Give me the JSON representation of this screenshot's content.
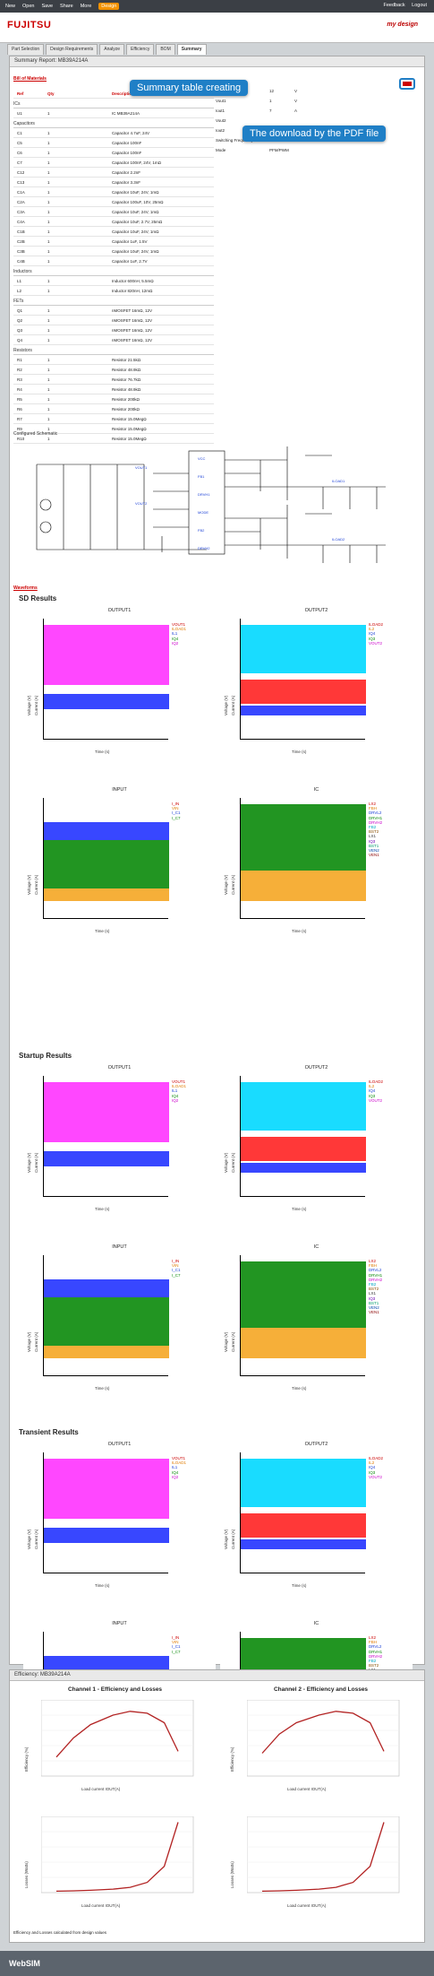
{
  "topnav": {
    "items": [
      "New",
      "Open",
      "Save",
      "Share",
      "More",
      "Design"
    ],
    "active": "Design",
    "right": [
      "Feedback",
      "Logout"
    ]
  },
  "brand": {
    "logo": "FUJITSU",
    "partner": "WebSIM"
  },
  "tabs": [
    "Part Selection",
    "Design Requirements",
    "Analyze",
    "Efficiency",
    "BOM",
    "Summary"
  ],
  "summary": {
    "title": "Summary Report: MB39A214A",
    "section": "Bill of Materials"
  },
  "callouts": {
    "summary": "Summary table creating",
    "pdf": "The download by the PDF file"
  },
  "bom": {
    "headers": [
      "Ref",
      "Qty",
      "Description"
    ],
    "groups": [
      {
        "name": "ICs",
        "rows": [
          [
            "U1",
            "1",
            "IC MB39A214A"
          ]
        ]
      },
      {
        "name": "Capacitors",
        "rows": [
          [
            "C1",
            "1",
            "Capacitor 4.7uF, 24V"
          ],
          [
            "C5",
            "1",
            "Capacitor 100nF"
          ],
          [
            "C6",
            "1",
            "Capacitor 100nF"
          ],
          [
            "C7",
            "1",
            "Capacitor 100nF, 24V, 1mΩ"
          ],
          [
            "C12",
            "1",
            "Capacitor 2.2nF"
          ],
          [
            "C13",
            "1",
            "Capacitor 3.3nF"
          ],
          [
            "C1A",
            "1",
            "Capacitor 10uF, 24V, 1mΩ"
          ],
          [
            "C2A",
            "1",
            "Capacitor 100uF, 10V, 25mΩ"
          ],
          [
            "C3A",
            "1",
            "Capacitor 10uF, 24V, 1mΩ"
          ],
          [
            "C4A",
            "1",
            "Capacitor 10uF, 2.7V, 25mΩ"
          ],
          [
            "C1B",
            "1",
            "Capacitor 10uF, 24V, 1mΩ"
          ],
          [
            "C2B",
            "1",
            "Capacitor 1uF, 1.5V"
          ],
          [
            "C3B",
            "1",
            "Capacitor 10uF, 24V, 1mΩ"
          ],
          [
            "C4B",
            "1",
            "Capacitor 1uF, 2.7V"
          ]
        ]
      },
      {
        "name": "Inductors",
        "rows": [
          [
            "L1",
            "1",
            "Inductor 600nH, 5.5mΩ"
          ],
          [
            "L2",
            "1",
            "Inductor 820nH, 12mΩ"
          ]
        ]
      },
      {
        "name": "FETs",
        "rows": [
          [
            "Q1",
            "1",
            "nMOSFET 16mΩ, 12V"
          ],
          [
            "Q2",
            "1",
            "nMOSFET 16mΩ, 12V"
          ],
          [
            "Q3",
            "1",
            "nMOSFET 16mΩ, 12V"
          ],
          [
            "Q4",
            "1",
            "nMOSFET 16mΩ, 12V"
          ]
        ]
      },
      {
        "name": "Resistors",
        "rows": [
          [
            "R1",
            "1",
            "Resistor 21.5kΩ"
          ],
          [
            "R2",
            "1",
            "Resistor 48.9kΩ"
          ],
          [
            "R3",
            "1",
            "Resistor 76.7kΩ"
          ],
          [
            "R4",
            "1",
            "Resistor 48.9kΩ"
          ],
          [
            "R5",
            "1",
            "Resistor 200kΩ"
          ],
          [
            "R6",
            "1",
            "Resistor 200kΩ"
          ],
          [
            "R7",
            "1",
            "Resistor 15.0MegΩ"
          ],
          [
            "R9",
            "1",
            "Resistor 15.0MegΩ"
          ],
          [
            "R10",
            "1",
            "Resistor 15.0MegΩ"
          ]
        ]
      }
    ]
  },
  "req": [
    [
      "Vin",
      "12",
      "V"
    ],
    [
      "Vout1",
      "1",
      "V"
    ],
    [
      "Iout1",
      "7",
      "A"
    ],
    [
      "Vout2",
      "",
      ""
    ],
    [
      "Iout2",
      "",
      ""
    ],
    [
      "Switching Frequency CH1-CH2",
      "400-620",
      "kHz"
    ],
    [
      "Mode",
      "PFM/PWM",
      ""
    ]
  ],
  "schematic": {
    "title": "Configured Schematic"
  },
  "waveforms": {
    "title": "Waveforms",
    "sections": [
      {
        "name": "SD Results"
      },
      {
        "name": "Startup Results"
      },
      {
        "name": "Transient Results"
      }
    ],
    "plot_titles": [
      "OUTPUT1",
      "OUTPUT2",
      "INPUT",
      "IC"
    ],
    "legends": {
      "OUTPUT1": [
        "VOUT1",
        "ILOAD1",
        "IL1",
        "IQ4",
        "IQ2"
      ],
      "OUTPUT2": [
        "ILOAD2",
        "IL2",
        "IQ4",
        "IQ3",
        "VOUT2"
      ],
      "INPUT": [
        "I_IN",
        "VIN",
        "I_C1",
        "I_C7"
      ],
      "IC": [
        "LX2",
        "FBH",
        "DRVL2",
        "DRVH1",
        "DRVH2",
        "FB2",
        "BST2",
        "LX1",
        "IQ3",
        "BST1",
        "VEN2",
        "VEN1"
      ]
    },
    "axis": {
      "voltage": "Voltage (V)",
      "current": "Current (A)",
      "time": "Time (s)"
    }
  },
  "efficiency": {
    "title": "Efficiency: MB39A214A",
    "charts": [
      "Channel 1 - Efficiency and Losses",
      "Channel 2 - Efficiency and Losses"
    ],
    "xlabel": "Load current IOUT(A)",
    "eff_ylabel": "Efficiency (%)",
    "loss_ylabel": "Losses (Watts)",
    "note": "Efficiency and Losses calculated from design values"
  },
  "chart_data": [
    {
      "type": "line",
      "title": "Channel 1 - Efficiency and Losses",
      "xlabel": "Load current IOUT(A)",
      "ylabel": "Efficiency (%)",
      "x": [
        0.05,
        0.1,
        0.2,
        0.5,
        1,
        2,
        4,
        7
      ],
      "series": [
        {
          "values": [
            70,
            80,
            87,
            92,
            94,
            93,
            88,
            73
          ]
        }
      ]
    },
    {
      "type": "line",
      "title": "Channel 2 - Efficiency and Losses",
      "xlabel": "Load current IOUT(A)",
      "ylabel": "Efficiency (%)",
      "x": [
        0.05,
        0.1,
        0.2,
        0.5,
        1,
        2,
        4,
        7
      ],
      "series": [
        {
          "values": [
            72,
            82,
            88,
            92,
            94,
            93,
            88,
            73
          ]
        }
      ]
    },
    {
      "type": "line",
      "title": "",
      "xlabel": "Load current IOUT(A)",
      "ylabel": "Losses (Watts)",
      "x": [
        0.05,
        0.1,
        0.2,
        0.5,
        1,
        2,
        4,
        7
      ],
      "series": [
        {
          "values": [
            0.05,
            0.06,
            0.08,
            0.12,
            0.18,
            0.35,
            0.9,
            2.4
          ]
        }
      ]
    },
    {
      "type": "line",
      "title": "",
      "xlabel": "Load current IOUT(A)",
      "ylabel": "Losses (Watts)",
      "x": [
        0.05,
        0.1,
        0.2,
        0.5,
        1,
        2,
        4,
        7
      ],
      "series": [
        {
          "values": [
            0.05,
            0.06,
            0.08,
            0.12,
            0.18,
            0.35,
            0.9,
            2.4
          ]
        }
      ]
    }
  ],
  "colors": {
    "accent": "#1f7fc6",
    "brand": "#cc0000",
    "nav": "#3b3f45",
    "tab_active": "#f39200"
  }
}
